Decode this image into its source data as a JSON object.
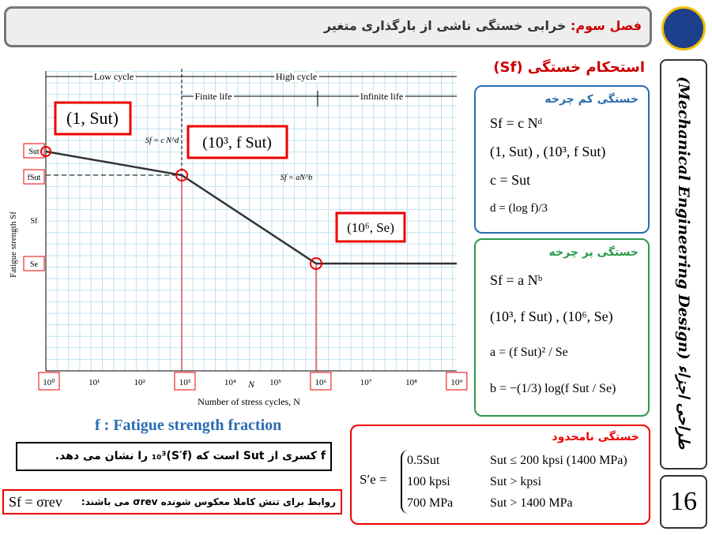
{
  "header": {
    "title_prefix": "فصل سوم:",
    "title": "خرابی خستگی ناشی از بارگذاری متغیر"
  },
  "sidebar": {
    "course": "طراحی اجزاء (Mechanical Engineering Design)",
    "page_number": "16"
  },
  "section_title": "استحکام خستگی (Sf)",
  "diagram": {
    "regions": [
      "Low cycle",
      "High cycle",
      "Finite life",
      "Infinite life"
    ],
    "y_axis_label": "Fatigue strength Sf",
    "y_labels": [
      "Sut",
      "fSut",
      "Sf",
      "Se"
    ],
    "x_ticks": [
      "10⁰",
      "10¹",
      "10²",
      "10³",
      "10⁴",
      "10⁵",
      "10⁶",
      "10⁷",
      "10⁸",
      "10⁹"
    ],
    "n_label": "N",
    "x_axis_label": "Number of stress cycles, N",
    "callouts": [
      "(1, Sut)",
      "(10³, f Sut)",
      "(10⁶, Se)"
    ],
    "curve_labels": [
      "Sf = c N^d",
      "Sf = aN^b"
    ]
  },
  "low_cycle": {
    "title": "خستگی کم چرخه",
    "lines": [
      "Sf = c Nᵈ",
      "(1, Sut) , (10³, f Sut)",
      "c = Sut",
      "d = (log f)/3"
    ]
  },
  "high_cycle": {
    "title": "خستگی پر چرخه",
    "lines": [
      "Sf = a Nᵇ",
      "(10³, f Sut) , (10⁶, Se)",
      "a = (f Sut)² / Se",
      "b = −(1/3) log(f Sut / Se)"
    ]
  },
  "fraction": {
    "title": "f : Fatigue strength fraction",
    "text": "f کسری از Sut است که (S′f)₁₀³ را نشان می دهد."
  },
  "reversed": {
    "text": "روابط برای تنش کاملا معکوس شونده σrev می باشند:",
    "formula": "Sf = σrev"
  },
  "infinite": {
    "title": "خستگی نامحدود",
    "lhs": "S′e =",
    "rows": [
      [
        "0.5Sut",
        "Sut ≤ 200 kpsi (1400 MPa)"
      ],
      [
        "100 kpsi",
        "Sut > kpsi"
      ],
      [
        "700 MPa",
        "Sut > 1400 MPa"
      ]
    ]
  }
}
